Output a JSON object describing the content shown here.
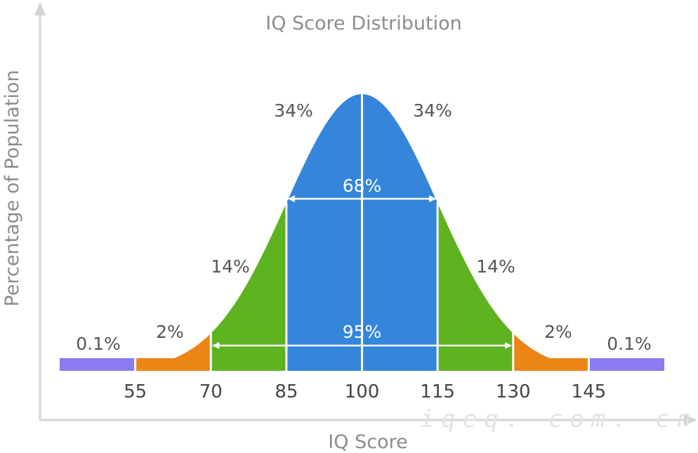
{
  "chart_data": {
    "type": "area",
    "title": "IQ Score Distribution",
    "xlabel": "IQ Score",
    "ylabel": "Percentage of Population",
    "xlim": [
      40,
      160
    ],
    "ticks": [
      "55",
      "70",
      "85",
      "100",
      "115",
      "130",
      "145"
    ],
    "tick_values": [
      55,
      70,
      85,
      100,
      115,
      130,
      145
    ],
    "distribution": {
      "mean": 100,
      "sd": 15
    },
    "bands": [
      {
        "from": 40,
        "to": 55,
        "label": "0.1%",
        "color": "#8a7cf0",
        "style": "bar"
      },
      {
        "from": 55,
        "to": 70,
        "label": "2%",
        "color": "#ea8516",
        "style": "curve"
      },
      {
        "from": 70,
        "to": 85,
        "label": "14%",
        "color": "#5db320",
        "style": "curve"
      },
      {
        "from": 85,
        "to": 100,
        "label": "34%",
        "color": "#3585db",
        "style": "curve"
      },
      {
        "from": 100,
        "to": 115,
        "label": "34%",
        "color": "#3585db",
        "style": "curve"
      },
      {
        "from": 115,
        "to": 130,
        "label": "14%",
        "color": "#5db320",
        "style": "curve"
      },
      {
        "from": 130,
        "to": 145,
        "label": "2%",
        "color": "#ea8516",
        "style": "curve"
      },
      {
        "from": 145,
        "to": 160,
        "label": "0.1%",
        "color": "#8a7cf0",
        "style": "bar"
      }
    ],
    "spans": [
      {
        "from": 85,
        "to": 115,
        "label": "68%"
      },
      {
        "from": 70,
        "to": 130,
        "label": "95%"
      }
    ],
    "axis_color": "#d3d3d3"
  },
  "watermark": "iqeq. com. cn"
}
